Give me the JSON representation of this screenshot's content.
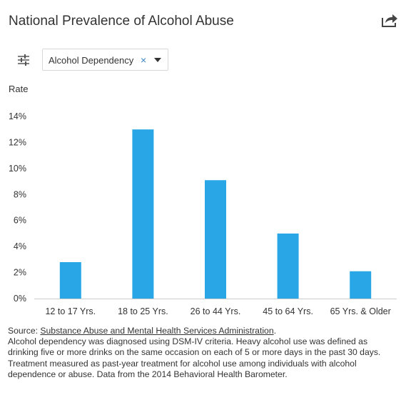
{
  "header": {
    "title": "National Prevalence of Alcohol Abuse"
  },
  "icons": {
    "share": "share-icon",
    "filter": "sliders-icon",
    "clear": "close-icon",
    "caret": "chevron-down-icon"
  },
  "filter": {
    "selected": "Alcohol Dependency",
    "clear_glyph": "×"
  },
  "colors": {
    "bar": "#29a6e6",
    "axis": "#cccccc",
    "text": "#333333"
  },
  "chart_data": {
    "type": "bar",
    "ylabel": "Rate",
    "categories": [
      "12 to 17 Yrs.",
      "18 to 25 Yrs.",
      "26 to 44 Yrs.",
      "45 to 64 Yrs.",
      "65 Yrs. & Older"
    ],
    "values": [
      2.8,
      13.0,
      9.1,
      5.0,
      2.1
    ],
    "ylim": [
      0,
      14
    ],
    "yticks": [
      "0%",
      "2%",
      "4%",
      "6%",
      "8%",
      "10%",
      "12%",
      "14%"
    ],
    "ytick_values": [
      0,
      2,
      4,
      6,
      8,
      10,
      12,
      14
    ],
    "grid": false,
    "legend": "none"
  },
  "footer": {
    "source_prefix": "Source: ",
    "source_link": "Substance Abuse and Mental Health Services Administration",
    "source_suffix": ".",
    "note": "Alcohol dependency was diagnosed using DSM-IV criteria. Heavy alcohol use was defined as drinking five or more drinks on the same occasion on each of 5 or more days in the past 30 days. Treatment measured as past-year treatment for alcohol use among individuals with alcohol dependence or abuse. Data from the 2014 Behavioral Health Barometer."
  }
}
